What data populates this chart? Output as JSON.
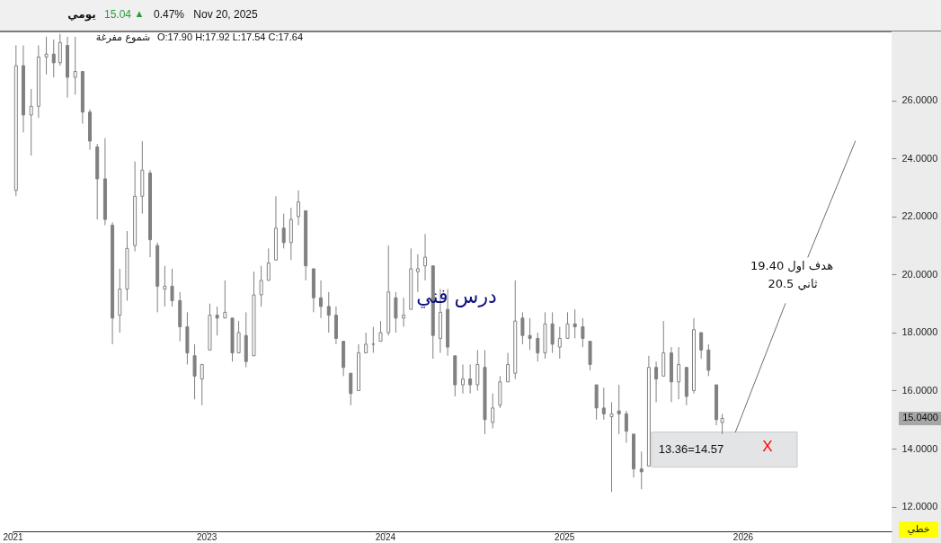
{
  "chart_data": {
    "type": "candlestick",
    "annotations": [
      "يومي",
      "15.04",
      "▲",
      "0.47%",
      "Nov 20, 2025",
      "شموع مفرغة",
      "O:17.90 H:17.92 L:17.54 C:17.64",
      "درس فني",
      "هدف اول 19.40",
      "ثاني 20.5",
      "X",
      "خطي"
    ],
    "color": "#808080",
    "x": [
      "2021-12-08",
      "2021-12-23",
      "2022-01-08",
      "2022-01-23",
      "2022-02-08",
      "2022-02-23",
      "2022-03-08",
      "2022-03-23",
      "2022-04-08",
      "2022-04-23",
      "2022-05-08",
      "2022-05-23",
      "2022-06-08",
      "2022-06-23",
      "2022-07-08",
      "2022-07-23",
      "2022-08-08",
      "2022-08-23",
      "2022-09-08",
      "2022-09-23",
      "2022-10-08",
      "2022-10-23",
      "2022-11-08",
      "2022-11-23",
      "2022-12-08",
      "2022-12-23",
      "2023-01-08",
      "2023-01-23",
      "2023-02-08",
      "2023-02-23",
      "2023-03-08",
      "2023-03-23",
      "2023-04-08",
      "2023-04-23",
      "2023-05-08",
      "2023-05-23",
      "2023-06-08",
      "2023-06-23",
      "2023-07-08",
      "2023-07-23",
      "2023-08-08",
      "2023-08-23",
      "2023-09-08",
      "2023-09-23",
      "2023-10-08",
      "2023-10-23",
      "2023-11-08",
      "2023-11-23",
      "2023-12-08",
      "2023-12-23",
      "2024-01-08",
      "2024-01-23",
      "2024-02-08",
      "2024-02-23",
      "2024-03-08",
      "2024-03-23",
      "2024-04-08",
      "2024-04-23",
      "2024-05-08",
      "2024-05-23",
      "2024-06-08",
      "2024-06-23",
      "2024-07-08",
      "2024-07-23",
      "2024-08-08",
      "2024-08-23",
      "2024-09-08",
      "2024-09-23",
      "2024-10-08",
      "2024-10-23",
      "2024-11-08",
      "2024-11-23",
      "2024-12-08",
      "2024-12-23",
      "2025-01-08",
      "2025-01-23",
      "2025-02-08",
      "2025-02-23",
      "2025-03-08",
      "2025-03-23",
      "2025-04-08",
      "2025-04-23",
      "2025-05-08",
      "2025-05-23",
      "2025-06-08",
      "2025-06-23",
      "2025-07-08",
      "2025-07-23",
      "2025-08-08",
      "2025-08-23",
      "2025-09-08",
      "2025-09-23",
      "2025-10-08",
      "2025-10-23",
      "2025-11-08",
      "2025-11-20"
    ],
    "ohlc": [
      [
        22.9,
        27.9,
        22.7,
        27.2
      ],
      [
        27.2,
        27.9,
        24.9,
        25.5
      ],
      [
        25.5,
        26.4,
        24.1,
        25.8
      ],
      [
        25.8,
        27.9,
        25.4,
        27.5
      ],
      [
        27.5,
        28.2,
        26.9,
        27.6
      ],
      [
        27.6,
        28.1,
        26.8,
        27.3
      ],
      [
        27.3,
        28.3,
        27.2,
        28.0
      ],
      [
        27.9,
        28.2,
        26.1,
        26.8
      ],
      [
        26.8,
        28.2,
        26.2,
        27.0
      ],
      [
        27.0,
        27.0,
        25.2,
        25.6
      ],
      [
        25.6,
        25.7,
        24.3,
        24.6
      ],
      [
        24.4,
        24.5,
        21.9,
        23.3
      ],
      [
        23.3,
        24.7,
        21.7,
        21.9
      ],
      [
        21.7,
        21.8,
        17.6,
        18.5
      ],
      [
        18.6,
        20.2,
        18.0,
        19.5
      ],
      [
        19.5,
        21.5,
        19.1,
        20.9
      ],
      [
        21.0,
        23.9,
        20.8,
        22.7
      ],
      [
        22.7,
        24.6,
        22.1,
        23.6
      ],
      [
        23.5,
        23.6,
        20.6,
        21.2
      ],
      [
        21.0,
        21.1,
        18.7,
        19.6
      ],
      [
        19.5,
        20.3,
        18.9,
        19.6
      ],
      [
        19.6,
        20.2,
        18.9,
        19.1
      ],
      [
        19.1,
        19.4,
        17.7,
        18.2
      ],
      [
        18.2,
        18.7,
        16.9,
        17.3
      ],
      [
        17.2,
        17.6,
        15.7,
        16.5
      ],
      [
        16.4,
        16.9,
        15.5,
        16.9
      ],
      [
        17.4,
        19.0,
        17.4,
        18.6
      ],
      [
        18.6,
        18.9,
        17.9,
        18.5
      ],
      [
        18.5,
        19.8,
        18.5,
        18.7
      ],
      [
        18.5,
        18.5,
        17.0,
        17.3
      ],
      [
        17.3,
        18.4,
        17.3,
        18.0
      ],
      [
        17.9,
        18.7,
        16.8,
        17.0
      ],
      [
        17.2,
        20.1,
        17.2,
        19.3
      ],
      [
        19.3,
        20.3,
        18.9,
        19.8
      ],
      [
        19.8,
        20.9,
        19.8,
        20.4
      ],
      [
        20.5,
        22.7,
        20.5,
        21.6
      ],
      [
        21.6,
        22.1,
        20.9,
        21.1
      ],
      [
        21.1,
        22.3,
        20.5,
        21.9
      ],
      [
        22.0,
        22.9,
        21.7,
        22.5
      ],
      [
        22.2,
        22.2,
        19.8,
        20.3
      ],
      [
        20.2,
        20.2,
        18.7,
        19.2
      ],
      [
        19.2,
        19.8,
        18.5,
        18.9
      ],
      [
        18.9,
        19.4,
        18.0,
        18.6
      ],
      [
        18.6,
        18.9,
        17.6,
        17.8
      ],
      [
        17.7,
        17.7,
        16.5,
        16.8
      ],
      [
        16.6,
        16.6,
        15.5,
        15.9
      ],
      [
        16.0,
        17.6,
        16.0,
        17.3
      ],
      [
        17.3,
        18.0,
        17.3,
        17.6
      ],
      [
        17.6,
        18.2,
        17.3,
        17.6
      ],
      [
        17.7,
        18.4,
        17.7,
        18.0
      ],
      [
        18.0,
        21.0,
        17.9,
        19.4
      ],
      [
        19.2,
        19.4,
        18.0,
        18.5
      ],
      [
        18.5,
        19.2,
        18.2,
        18.6
      ],
      [
        18.8,
        20.9,
        18.8,
        20.2
      ],
      [
        20.1,
        20.7,
        19.4,
        20.2
      ],
      [
        20.3,
        21.4,
        19.8,
        20.6
      ],
      [
        20.3,
        20.3,
        17.1,
        17.9
      ],
      [
        17.8,
        19.5,
        17.3,
        18.7
      ],
      [
        18.8,
        19.5,
        17.2,
        17.5
      ],
      [
        17.2,
        17.2,
        15.8,
        16.2
      ],
      [
        16.2,
        16.9,
        15.9,
        16.4
      ],
      [
        16.4,
        16.9,
        15.9,
        16.2
      ],
      [
        16.2,
        17.4,
        16.0,
        16.9
      ],
      [
        16.8,
        17.4,
        14.5,
        15.0
      ],
      [
        14.9,
        15.9,
        14.7,
        15.4
      ],
      [
        15.5,
        16.5,
        15.4,
        16.3
      ],
      [
        16.3,
        17.3,
        16.3,
        16.9
      ],
      [
        16.6,
        19.8,
        16.4,
        18.4
      ],
      [
        18.5,
        18.7,
        17.6,
        17.9
      ],
      [
        17.9,
        18.5,
        17.4,
        17.8
      ],
      [
        17.8,
        18.0,
        17.0,
        17.3
      ],
      [
        17.3,
        18.7,
        17.1,
        18.3
      ],
      [
        18.3,
        18.7,
        17.3,
        17.6
      ],
      [
        17.5,
        18.2,
        17.1,
        17.8
      ],
      [
        17.8,
        18.7,
        17.8,
        18.3
      ],
      [
        18.3,
        18.8,
        17.8,
        18.2
      ],
      [
        18.2,
        18.5,
        17.5,
        17.8
      ],
      [
        17.7,
        17.7,
        16.7,
        16.9
      ],
      [
        16.2,
        16.2,
        15.0,
        15.4
      ],
      [
        15.4,
        16.1,
        15.0,
        15.2
      ],
      [
        15.1,
        15.6,
        12.5,
        15.2
      ],
      [
        15.3,
        16.2,
        14.5,
        15.2
      ],
      [
        15.2,
        15.3,
        14.2,
        14.6
      ],
      [
        14.5,
        14.5,
        13.0,
        13.3
      ],
      [
        13.3,
        13.9,
        12.6,
        13.2
      ],
      [
        13.4,
        17.2,
        13.4,
        16.8
      ],
      [
        16.8,
        17.0,
        15.6,
        16.4
      ],
      [
        16.5,
        18.4,
        16.5,
        17.3
      ],
      [
        17.3,
        17.5,
        15.6,
        16.3
      ],
      [
        16.3,
        17.5,
        15.7,
        16.9
      ],
      [
        16.8,
        16.8,
        15.5,
        15.8
      ],
      [
        16.0,
        18.5,
        15.9,
        18.1
      ],
      [
        18.0,
        18.0,
        17.1,
        17.4
      ],
      [
        17.4,
        17.6,
        16.5,
        16.7
      ],
      [
        16.2,
        16.2,
        14.8,
        15.0
      ],
      [
        14.9,
        15.2,
        14.5,
        15.04
      ]
    ],
    "series": [
      {
        "type": "line",
        "color": "#6e6e6e",
        "x": [
          "2025-12-17",
          "2026-03-29"
        ],
        "values": [
          14.57,
          19.0
        ]
      },
      {
        "type": "line",
        "color": "#6e6e6e",
        "x": [
          "2026-05-14",
          "2026-08-19"
        ],
        "values": [
          20.6,
          24.6
        ]
      }
    ],
    "bands": [
      {
        "axis": "y",
        "from": 13.36,
        "to": 14.57,
        "label": "13.36=14.57",
        "color": "#e3e4e6"
      }
    ],
    "ref_lines": [
      {
        "axis": "y",
        "value": 15.04,
        "label": "15.0400",
        "color": "#a6a6a6"
      }
    ],
    "xlim": [
      "2021-12-01",
      "2026-11-01"
    ],
    "xticks": [
      {
        "value": "2021-12-01",
        "label": "2021"
      },
      {
        "value": "2023-01-01",
        "label": "2023"
      },
      {
        "value": "2024-01-01",
        "label": "2024"
      },
      {
        "value": "2025-01-01",
        "label": "2025"
      },
      {
        "value": "2026-01-01",
        "label": "2026"
      }
    ],
    "ylim": [
      11.15,
      28.38
    ],
    "yticks": [
      {
        "value": 12,
        "label": "12.0000"
      },
      {
        "value": 14,
        "label": "14.0000"
      },
      {
        "value": 16,
        "label": "16.0000"
      },
      {
        "value": 18,
        "label": "18.0000"
      },
      {
        "value": 20,
        "label": "20.0000"
      },
      {
        "value": 22,
        "label": "22.0000"
      },
      {
        "value": 24,
        "label": "24.0000"
      },
      {
        "value": 26,
        "label": "26.0000"
      }
    ]
  }
}
